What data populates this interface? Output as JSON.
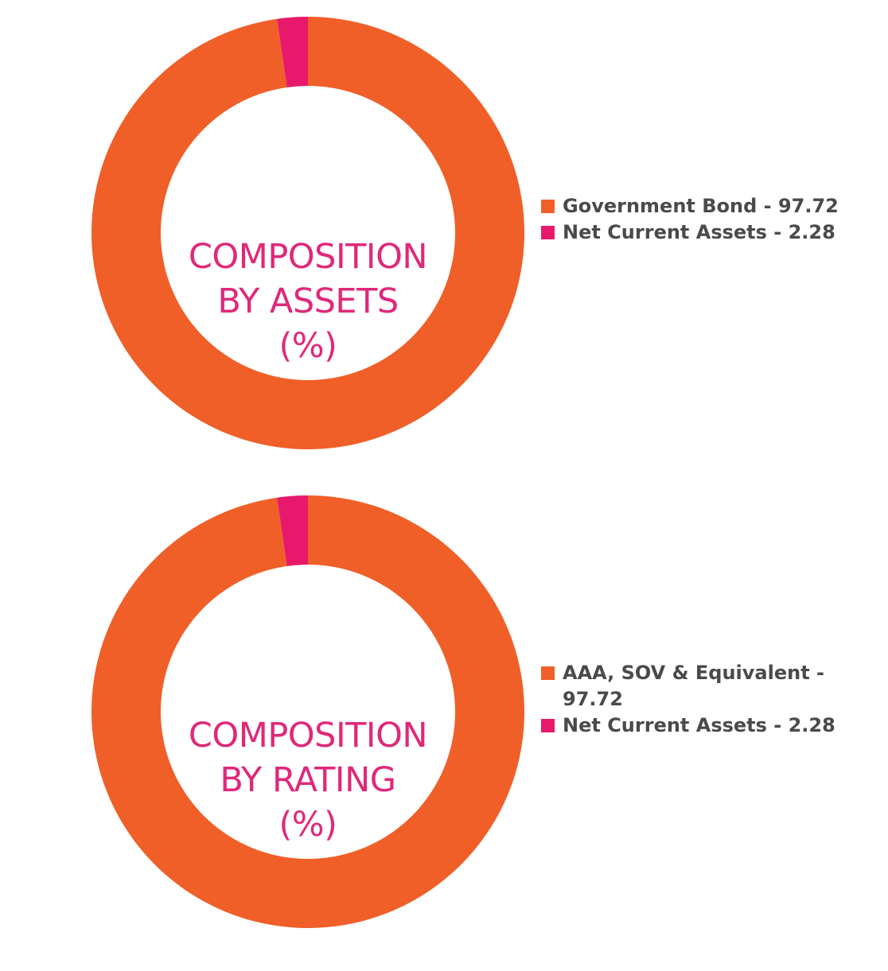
{
  "colors": {
    "orange": "#f05f28",
    "pink": "#e8196c",
    "label_pink": "#e0287a",
    "legend_text": "#4a4a4a"
  },
  "chart_data": [
    {
      "type": "pie",
      "center_label": [
        "COMPOSITION",
        "BY ASSETS",
        "(%)"
      ],
      "labels": [
        "Government Bond",
        "Net Current Assets"
      ],
      "values": [
        97.72,
        2.28
      ],
      "legend_entries": [
        "Government Bond - 97.72",
        "Net Current Assets - 2.28"
      ],
      "colors": [
        "#f05f28",
        "#e8196c"
      ],
      "legend_position": "right"
    },
    {
      "type": "pie",
      "center_label": [
        "COMPOSITION",
        "BY RATING",
        "(%)"
      ],
      "labels": [
        "AAA, SOV & Equivalent",
        "Net Current Assets"
      ],
      "values": [
        97.72,
        2.28
      ],
      "legend_entries": [
        "AAA, SOV & Equivalent - 97.72",
        "Net Current Assets - 2.28"
      ],
      "colors": [
        "#f05f28",
        "#e8196c"
      ],
      "legend_position": "right"
    }
  ]
}
